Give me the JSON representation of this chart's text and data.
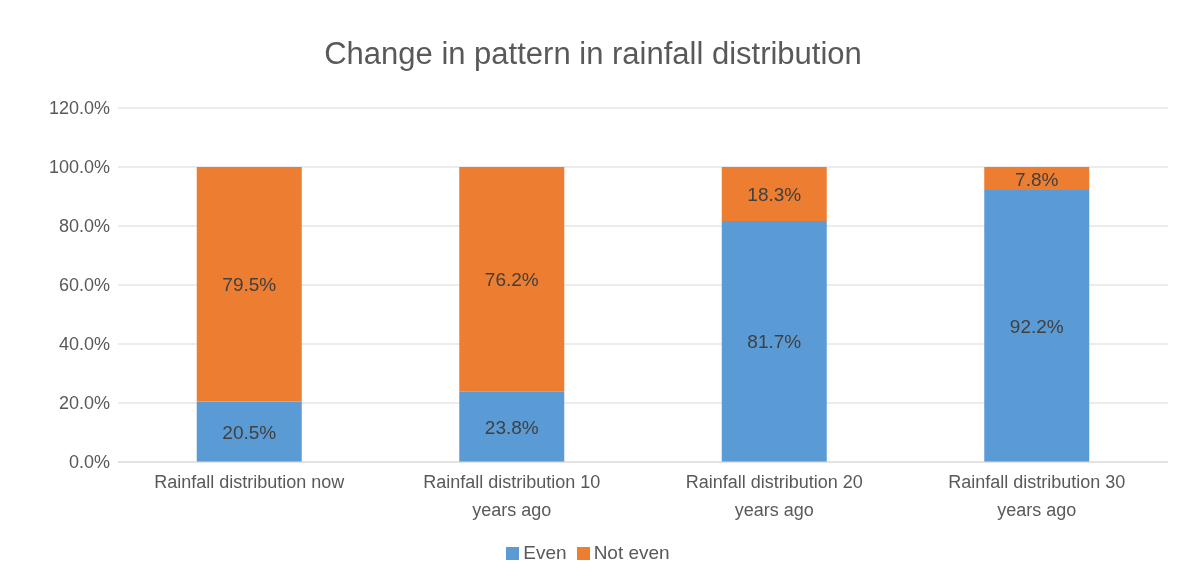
{
  "chart_data": {
    "type": "bar",
    "title": "Change in pattern in rainfall distribution",
    "categories": [
      "Rainfall distribution now",
      "Rainfall distribution 10 years ago",
      "Rainfall distribution 20 years ago",
      "Rainfall distribution 30 years ago"
    ],
    "series": [
      {
        "name": "Even",
        "color": "#5b9bd5",
        "values": [
          20.5,
          23.8,
          81.7,
          92.2
        ],
        "value_labels": [
          "20.5%",
          "23.8%",
          "81.7%",
          "92.2%"
        ]
      },
      {
        "name": "Not even",
        "color": "#ed7d31",
        "values": [
          79.5,
          76.2,
          18.3,
          7.8
        ],
        "value_labels": [
          "79.5%",
          "76.2%",
          "18.3%",
          "7.8%"
        ]
      }
    ],
    "stacked": true,
    "ylim": [
      0,
      120
    ],
    "yticks": [
      {
        "value": 0,
        "label": "0.0%"
      },
      {
        "value": 20,
        "label": "20.0%"
      },
      {
        "value": 40,
        "label": "40.0%"
      },
      {
        "value": 60,
        "label": "60.0%"
      },
      {
        "value": 80,
        "label": "80.0%"
      },
      {
        "value": 100,
        "label": "100.0%"
      },
      {
        "value": 120,
        "label": "120.0%"
      }
    ],
    "grid": "y",
    "legend": "bottom"
  }
}
